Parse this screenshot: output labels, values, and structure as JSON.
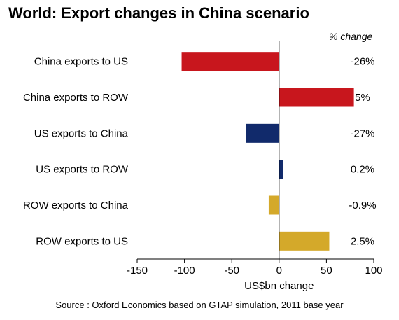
{
  "chart_data": {
    "type": "bar",
    "orientation": "horizontal",
    "title": "World: Export changes in China scenario",
    "annotation_header": "% change",
    "categories": [
      "China exports  to US",
      "China exports to ROW",
      "US exports to China",
      "US exports to ROW",
      "ROW exports to China",
      "ROW exports to US"
    ],
    "values": [
      -103,
      79,
      -35,
      4,
      -11,
      53
    ],
    "pct_labels": [
      "-26%",
      "5%",
      "-27%",
      "0.2%",
      "-0.9%",
      "2.5%"
    ],
    "colors": [
      "#c8161d",
      "#c8161d",
      "#112a6b",
      "#112a6b",
      "#d4a92a",
      "#d4a92a"
    ],
    "xlabel": "US$bn change",
    "xlim": [
      -150,
      100
    ],
    "xticks": [
      -150,
      -100,
      -50,
      0,
      50,
      100
    ],
    "grid": false,
    "source": "Source : Oxford Economics based on GTAP simulation, 2011 base year"
  }
}
